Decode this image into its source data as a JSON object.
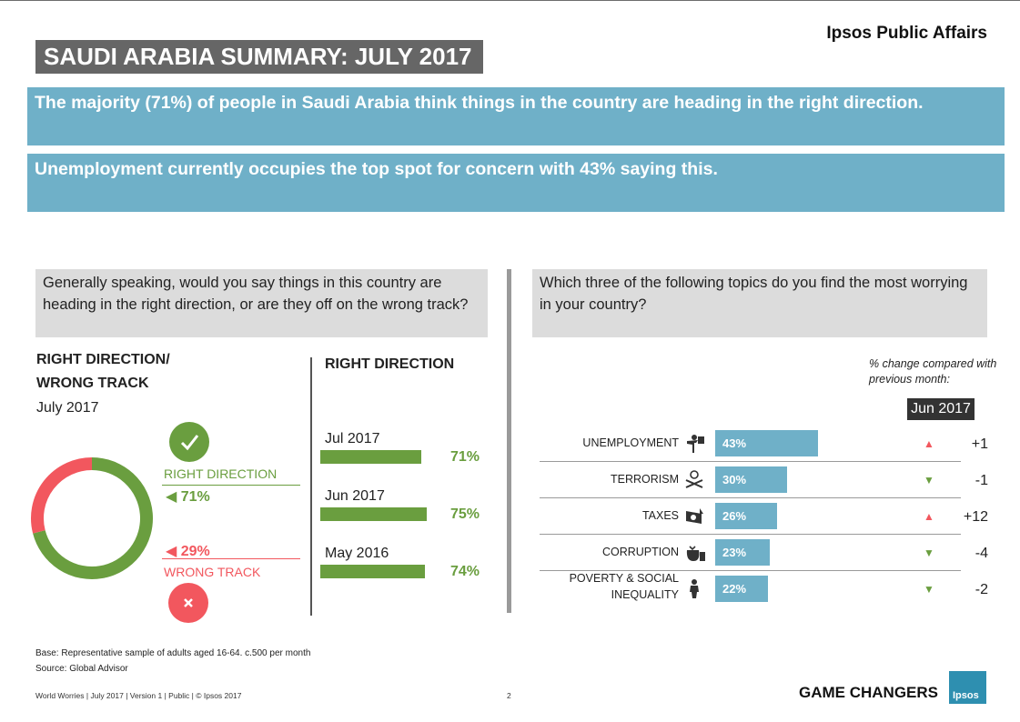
{
  "brand": "Ipsos Public Affairs",
  "title": "SAUDI ARABIA SUMMARY: JULY 2017",
  "headline1": "The majority (71%) of people in Saudi Arabia think things in the country are heading in the right direction.",
  "headline2": "Unemployment currently occupies the top spot for concern with 43% saying this.",
  "left_question": "Generally speaking, would you say things in this country are heading in the right direction, or are they off on the wrong track?",
  "right_question": "Which three of the following topics do you find the most worrying in your country?",
  "colors": {
    "green": "#6a9e3f",
    "red": "#f2575e",
    "blue": "#6fb0c8"
  },
  "chart_data": [
    {
      "type": "pie",
      "title": "RIGHT DIRECTION/ WRONG TRACK",
      "title_line1": "RIGHT DIRECTION/",
      "title_line2": "WRONG TRACK",
      "subtitle": "July 2017",
      "slices": [
        {
          "name": "RIGHT DIRECTION",
          "value": 71,
          "label": "◀ 71%",
          "color": "#6a9e3f",
          "icon": "check-icon"
        },
        {
          "name": "WRONG TRACK",
          "value": 29,
          "label": "◀ 29%",
          "color": "#f2575e",
          "icon": "cross-icon"
        }
      ]
    },
    {
      "type": "bar",
      "title": "RIGHT DIRECTION",
      "categories": [
        "Jul 2017",
        "Jun 2017",
        "May 2016"
      ],
      "values": [
        71,
        75,
        74
      ],
      "labels": [
        "71%",
        "75%",
        "74%"
      ],
      "xlim": [
        0,
        75
      ]
    },
    {
      "type": "bar",
      "title": "",
      "categories": [
        "UNEMPLOYMENT",
        "TERRORISM",
        "TAXES",
        "CORRUPTION",
        "POVERTY & SOCIAL INEQUALITY"
      ],
      "label_lines": [
        [
          "UNEMPLOYMENT"
        ],
        [
          "TERRORISM"
        ],
        [
          "TAXES"
        ],
        [
          "CORRUPTION"
        ],
        [
          "POVERTY & SOCIAL",
          "INEQUALITY"
        ]
      ],
      "values": [
        43,
        30,
        26,
        23,
        22
      ],
      "labels": [
        "43%",
        "30%",
        "26%",
        "23%",
        "22%"
      ],
      "change_note_line1": "% change compared with",
      "change_note_line2": "previous month:",
      "change_period": "Jun 2017",
      "changes": [
        "+1",
        "-1",
        "+12",
        "-4",
        "-2"
      ],
      "directions": [
        "up",
        "down",
        "up",
        "down",
        "down"
      ],
      "icons": [
        "unemployment-icon",
        "terrorism-icon",
        "taxes-icon",
        "corruption-icon",
        "poverty-icon"
      ],
      "xlim": [
        0,
        43
      ]
    }
  ],
  "footnote_base": "Base: Representative sample of adults aged 16-64. c.500 per month",
  "footnote_source": "Source: Global Advisor",
  "footer_left": "World Worries | July 2017 | Version 1 | Public | © Ipsos 2017",
  "page_number": "2",
  "tagline": "GAME CHANGERS",
  "logo_text": "Ipsos"
}
